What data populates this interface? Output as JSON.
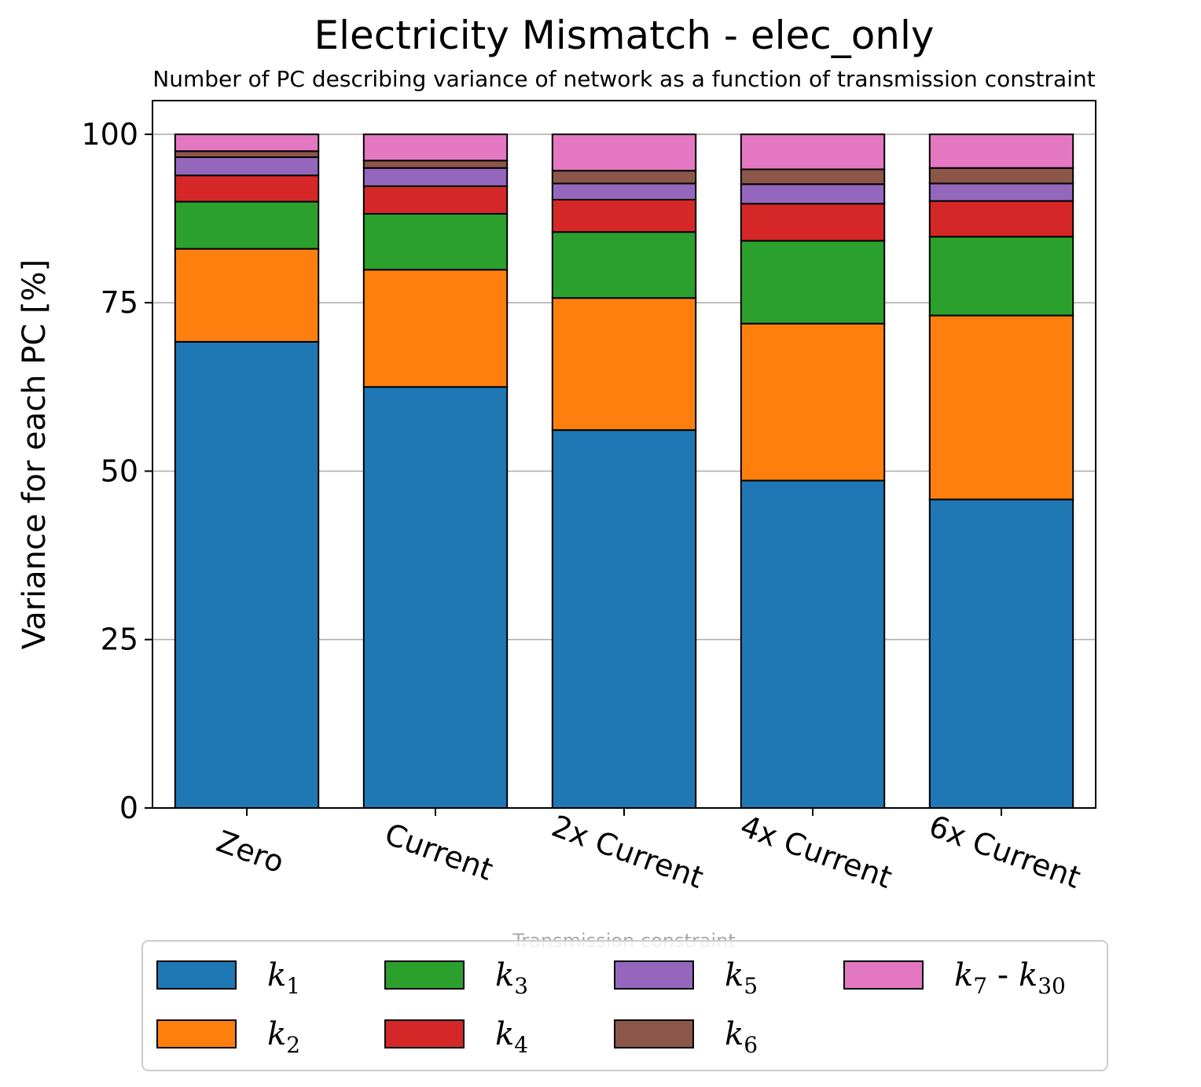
{
  "chart_data": {
    "type": "bar",
    "stacked": true,
    "title": "Electricity Mismatch - elec_only",
    "subtitle": "Number of PC describing variance of network as a function of transmission constraint",
    "xlabel": "Transmission constraint",
    "ylabel": "Variance for each PC [%]",
    "ylim": [
      0,
      105
    ],
    "yticks": [
      0,
      25,
      50,
      75,
      100
    ],
    "grid": "y",
    "legend_position": "bottom",
    "categories": [
      "Zero",
      "Current",
      "2x Current",
      "4x Current",
      "6x Current"
    ],
    "series": [
      {
        "name": "k1",
        "base": "k",
        "sub": "1",
        "color": "#1f77b4",
        "values": [
          69.2,
          62.5,
          56.1,
          48.6,
          45.8
        ]
      },
      {
        "name": "k2",
        "base": "k",
        "sub": "2",
        "color": "#ff7f0e",
        "values": [
          13.8,
          17.4,
          19.6,
          23.3,
          27.3
        ]
      },
      {
        "name": "k3",
        "base": "k",
        "sub": "3",
        "color": "#2ca02c",
        "values": [
          7.0,
          8.3,
          9.8,
          12.3,
          11.7
        ]
      },
      {
        "name": "k4",
        "base": "k",
        "sub": "4",
        "color": "#d62728",
        "values": [
          3.9,
          4.1,
          4.8,
          5.5,
          5.3
        ]
      },
      {
        "name": "k5",
        "base": "k",
        "sub": "5",
        "color": "#9467bd",
        "values": [
          2.7,
          2.7,
          2.4,
          2.9,
          2.6
        ]
      },
      {
        "name": "k6",
        "base": "k",
        "sub": "6",
        "color": "#8c564b",
        "values": [
          0.9,
          1.1,
          1.9,
          2.2,
          2.3
        ]
      },
      {
        "name": "k7 - k30",
        "base": "k",
        "sub": "7",
        "base2": "k",
        "sub2": "30",
        "color": "#e377c2",
        "values": [
          2.5,
          3.9,
          5.4,
          5.2,
          5.0
        ]
      }
    ]
  }
}
